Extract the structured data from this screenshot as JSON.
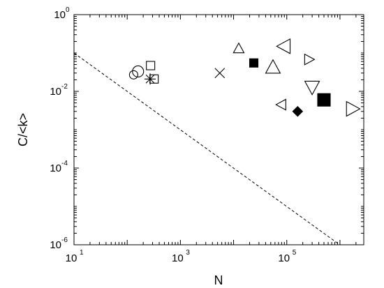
{
  "chart_data": {
    "type": "scatter",
    "title": "",
    "xlabel": "N",
    "ylabel": "C/<k>",
    "x_scale": "log",
    "y_scale": "log",
    "xlim": [
      10,
      2800000
    ],
    "ylim": [
      1e-06,
      1
    ],
    "x_ticks": [
      {
        "value": 10,
        "base": "10",
        "exp": "1"
      },
      {
        "value": 1000,
        "base": "10",
        "exp": "3"
      },
      {
        "value": 100000,
        "base": "10",
        "exp": "5"
      }
    ],
    "y_ticks": [
      {
        "value": 1,
        "base": "10",
        "exp": "0"
      },
      {
        "value": 0.01,
        "base": "10",
        "exp": "-2"
      },
      {
        "value": 0.0001,
        "base": "10",
        "exp": "-4"
      },
      {
        "value": 1e-06,
        "base": "10",
        "exp": "-6"
      }
    ],
    "grid": false,
    "reference_line": {
      "style": "dashed",
      "points": [
        [
          10,
          0.1
        ],
        [
          900000,
          1.1e-06
        ]
      ]
    },
    "points": [
      {
        "marker": "circle",
        "filled": false,
        "x": 132,
        "y": 0.027
      },
      {
        "marker": "circle-large",
        "filled": false,
        "x": 160,
        "y": 0.033
      },
      {
        "marker": "square",
        "filled": false,
        "x": 275,
        "y": 0.047
      },
      {
        "marker": "asterisk",
        "filled": false,
        "x": 270,
        "y": 0.021
      },
      {
        "marker": "square",
        "filled": false,
        "x": 320,
        "y": 0.021
      },
      {
        "marker": "cross",
        "filled": false,
        "x": 5500,
        "y": 0.03
      },
      {
        "marker": "triangle-up",
        "filled": false,
        "x": 12500,
        "y": 0.13
      },
      {
        "marker": "square",
        "filled": true,
        "x": 24000,
        "y": 0.055
      },
      {
        "marker": "triangle-up-large",
        "filled": false,
        "x": 55000,
        "y": 0.042
      },
      {
        "marker": "triangle-left-large",
        "filled": false,
        "x": 90000,
        "y": 0.15
      },
      {
        "marker": "triangle-right",
        "filled": false,
        "x": 260000,
        "y": 0.068
      },
      {
        "marker": "triangle-down-large",
        "filled": false,
        "x": 300000,
        "y": 0.013
      },
      {
        "marker": "triangle-left",
        "filled": false,
        "x": 80000,
        "y": 0.0045
      },
      {
        "marker": "diamond",
        "filled": true,
        "x": 160000,
        "y": 0.003
      },
      {
        "marker": "square-large",
        "filled": true,
        "x": 500000,
        "y": 0.006
      },
      {
        "marker": "triangle-right-large",
        "filled": false,
        "x": 1700000,
        "y": 0.0035
      }
    ]
  }
}
